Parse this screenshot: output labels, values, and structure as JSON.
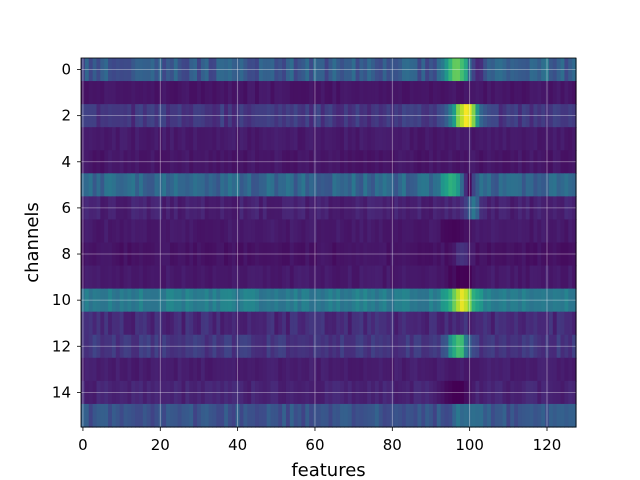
{
  "chart_data": {
    "type": "heatmap",
    "title": "",
    "xlabel": "features",
    "ylabel": "channels",
    "n_cols": 128,
    "n_rows": 16,
    "xlim": [
      -0.5,
      127.5
    ],
    "ylim": [
      15.5,
      -0.5
    ],
    "xticks": [
      0,
      20,
      40,
      60,
      80,
      100,
      120
    ],
    "yticks": [
      0,
      2,
      4,
      6,
      8,
      10,
      12,
      14
    ],
    "grid": true,
    "colormap": "viridis",
    "colors": {
      "viridis_stops": [
        "#440154",
        "#482878",
        "#3e4989",
        "#31688e",
        "#26828e",
        "#1f9e89",
        "#35b779",
        "#6ece58",
        "#b5de2b",
        "#fde725"
      ]
    },
    "rows": [
      {
        "base": 0.28,
        "var": 0.08,
        "peaks": [
          {
            "c": 97,
            "w": 2.2,
            "a": 0.5
          },
          {
            "c": 120,
            "w": 3.0,
            "a": 0.05
          }
        ],
        "dips": [
          {
            "c": 102,
            "w": 1.6,
            "a": 0.25
          }
        ]
      },
      {
        "base": 0.06,
        "var": 0.02,
        "peaks": [],
        "dips": []
      },
      {
        "base": 0.16,
        "var": 0.06,
        "peaks": [
          {
            "c": 99,
            "w": 2.4,
            "a": 0.85
          }
        ],
        "dips": []
      },
      {
        "base": 0.07,
        "var": 0.02,
        "peaks": [],
        "dips": []
      },
      {
        "base": 0.06,
        "var": 0.02,
        "peaks": [],
        "dips": []
      },
      {
        "base": 0.33,
        "var": 0.07,
        "peaks": [
          {
            "c": 95,
            "w": 1.8,
            "a": 0.3
          }
        ],
        "dips": [
          {
            "c": 100,
            "w": 1.2,
            "a": 0.25
          }
        ]
      },
      {
        "base": 0.09,
        "var": 0.03,
        "peaks": [
          {
            "c": 101,
            "w": 1.2,
            "a": 0.28
          }
        ],
        "dips": []
      },
      {
        "base": 0.07,
        "var": 0.02,
        "peaks": [],
        "dips": [
          {
            "c": 96,
            "w": 3.0,
            "a": 0.05
          }
        ]
      },
      {
        "base": 0.05,
        "var": 0.02,
        "peaks": [
          {
            "c": 98,
            "w": 1.5,
            "a": 0.08
          }
        ],
        "dips": []
      },
      {
        "base": 0.07,
        "var": 0.02,
        "peaks": [],
        "dips": [
          {
            "c": 98,
            "w": 2.5,
            "a": 0.07
          }
        ]
      },
      {
        "base": 0.42,
        "var": 0.05,
        "peaks": [
          {
            "c": 98,
            "w": 2.6,
            "a": 0.5
          }
        ],
        "dips": []
      },
      {
        "base": 0.12,
        "var": 0.05,
        "peaks": [],
        "dips": []
      },
      {
        "base": 0.16,
        "var": 0.05,
        "peaks": [
          {
            "c": 97,
            "w": 1.8,
            "a": 0.55
          }
        ],
        "dips": []
      },
      {
        "base": 0.08,
        "var": 0.02,
        "peaks": [],
        "dips": []
      },
      {
        "base": 0.1,
        "var": 0.03,
        "peaks": [],
        "dips": [
          {
            "c": 96,
            "w": 3.0,
            "a": 0.1
          }
        ]
      },
      {
        "base": 0.26,
        "var": 0.06,
        "peaks": [
          {
            "c": 100,
            "w": 3.0,
            "a": 0.14
          }
        ],
        "dips": []
      }
    ]
  }
}
